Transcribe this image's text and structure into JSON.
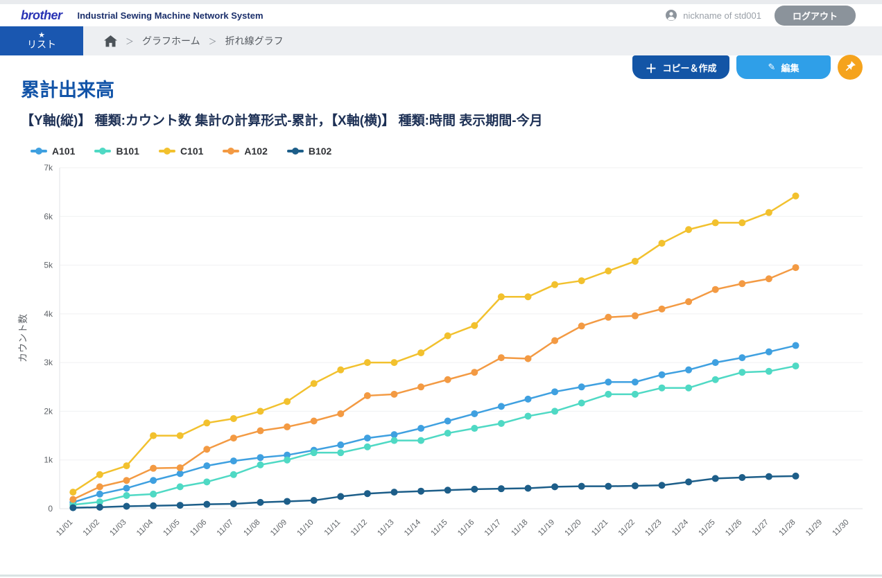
{
  "header": {
    "logo": "brother",
    "app_title": "Industrial Sewing Machine Network System",
    "user": {
      "name": "nickname of std001",
      "icon": "user-icon"
    },
    "logout_label": "ログアウト"
  },
  "nav": {
    "list_tab": {
      "label": "リスト",
      "icon": "star-icon"
    },
    "breadcrumb": {
      "home_icon": "home-icon",
      "separator": "＞",
      "items": [
        "グラフホーム",
        "折れ線グラフ"
      ]
    }
  },
  "toolbar": {
    "copy_create_label": "コピー＆作成",
    "edit_label": "編集",
    "pin_icon": "pushpin-icon"
  },
  "icons": {
    "star": "★",
    "plus": "＋",
    "pencil": "✎"
  },
  "page": {
    "title": "累計出来高",
    "subtitle": "【Y軸(縦)】 種類:カウント数 集計の計算形式-累計，【X軸(横)】 種類:時間 表示期間-今月"
  },
  "colors": {
    "accent_blue": "#1355a6",
    "light_blue": "#2f9fe8",
    "orange": "#f5a31d",
    "tab_blue": "#1a57b0",
    "title_blue": "#1254a8"
  },
  "chart_data": {
    "type": "line",
    "title": "累計出来高",
    "xlabel": "",
    "ylabel": "カウント数",
    "ylim": [
      0,
      7000
    ],
    "ytick_step": 1000,
    "ytick_labels": [
      "0",
      "1k",
      "2k",
      "3k",
      "4k",
      "5k",
      "6k",
      "7k"
    ],
    "grid": "horizontal",
    "legend_position": "top-left",
    "x": [
      "11/01",
      "11/02",
      "11/03",
      "11/04",
      "11/05",
      "11/06",
      "11/07",
      "11/08",
      "11/09",
      "11/10",
      "11/11",
      "11/12",
      "11/13",
      "11/14",
      "11/15",
      "11/16",
      "11/17",
      "11/18",
      "11/19",
      "11/20",
      "11/21",
      "11/22",
      "11/23",
      "11/24",
      "11/25",
      "11/26",
      "11/27",
      "11/28",
      "11/29",
      "11/30"
    ],
    "series": [
      {
        "name": "A101",
        "color": "#3fa0e0",
        "values": [
          130,
          300,
          420,
          580,
          720,
          880,
          980,
          1050,
          1100,
          1200,
          1310,
          1450,
          1520,
          1650,
          1800,
          1950,
          2100,
          2250,
          2400,
          2500,
          2600,
          2600,
          2750,
          2850,
          3000,
          3100,
          3220,
          3350,
          null,
          null
        ]
      },
      {
        "name": "B101",
        "color": "#4fd9c4",
        "values": [
          80,
          140,
          270,
          300,
          450,
          550,
          700,
          900,
          1000,
          1150,
          1150,
          1270,
          1400,
          1400,
          1550,
          1650,
          1750,
          1900,
          2000,
          2170,
          2350,
          2350,
          2480,
          2480,
          2650,
          2800,
          2820,
          2930,
          null,
          null
        ]
      },
      {
        "name": "C101",
        "color": "#f2c12e",
        "values": [
          340,
          700,
          880,
          1500,
          1500,
          1760,
          1850,
          2000,
          2200,
          2570,
          2850,
          3000,
          3000,
          3200,
          3550,
          3760,
          4350,
          4350,
          4600,
          4680,
          4880,
          5080,
          5450,
          5730,
          5870,
          5870,
          6080,
          6420,
          null,
          null
        ]
      },
      {
        "name": "A102",
        "color": "#f39a43",
        "values": [
          190,
          450,
          580,
          830,
          840,
          1220,
          1450,
          1600,
          1680,
          1800,
          1950,
          2320,
          2350,
          2500,
          2650,
          2800,
          3100,
          3080,
          3450,
          3750,
          3930,
          3960,
          4100,
          4250,
          4500,
          4620,
          4720,
          4950,
          null,
          null
        ]
      },
      {
        "name": "B102",
        "color": "#1d5e89",
        "values": [
          20,
          30,
          50,
          60,
          70,
          90,
          100,
          130,
          150,
          170,
          250,
          310,
          340,
          360,
          380,
          400,
          410,
          420,
          450,
          460,
          460,
          470,
          480,
          550,
          620,
          640,
          660,
          670,
          null,
          null
        ]
      }
    ]
  }
}
